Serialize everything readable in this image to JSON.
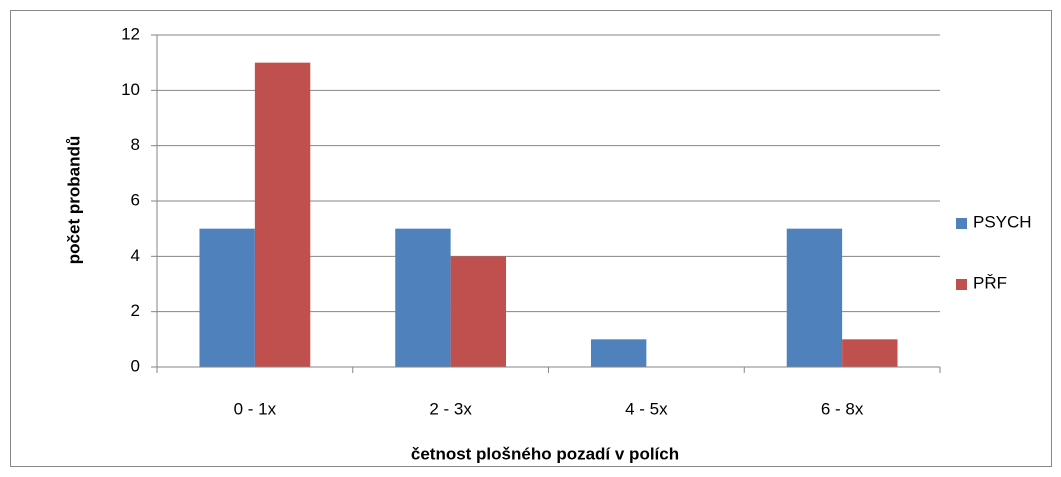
{
  "chart_data": {
    "type": "bar",
    "categories": [
      "0 - 1x",
      "2 - 3x",
      "4 - 5x",
      "6 - 8x"
    ],
    "series": [
      {
        "name": "PSYCH",
        "color": "#4f81bd",
        "values": [
          5,
          5,
          1,
          5
        ]
      },
      {
        "name": "PŘF",
        "color": "#c0504d",
        "values": [
          11,
          4,
          0,
          1
        ]
      }
    ],
    "xlabel": "četnost plošného pozadí v polích",
    "ylabel": "počet probandů",
    "ylim": [
      0,
      12
    ],
    "yticks": [
      0,
      2,
      4,
      6,
      8,
      10,
      12
    ],
    "grid": true,
    "legend": "right"
  }
}
